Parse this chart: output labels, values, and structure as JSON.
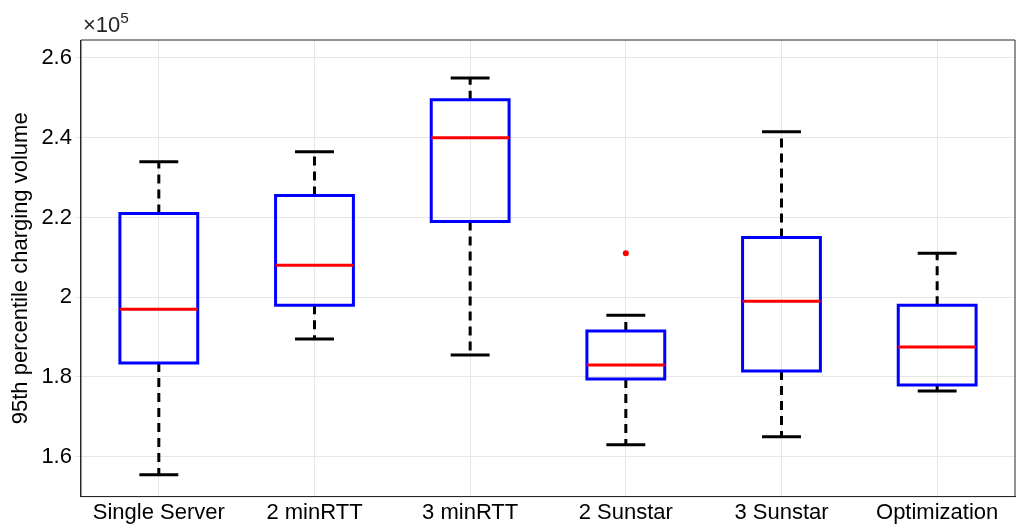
{
  "chart_data": {
    "type": "box",
    "categories": [
      "Single Server",
      "2 minRTT",
      "3 minRTT",
      "2 Sunstar",
      "3 Sunstar",
      "Optimization"
    ],
    "ylabel": "95th percentile charging volume",
    "annotations": [
      "×10$^{5}$"
    ],
    "ylim": [
      1.5,
      2.645
    ],
    "yticks": [
      1.6,
      1.8,
      2,
      2.2,
      2.4,
      2.6
    ],
    "grid": true,
    "series": [
      {
        "color": "#0000ff",
        "boxes": [
          {
            "low": 1.555,
            "q1": 1.835,
            "median": 1.97,
            "q3": 2.21,
            "high": 2.34
          },
          {
            "low": 1.895,
            "q1": 1.98,
            "median": 2.08,
            "q3": 2.255,
            "high": 2.365
          },
          {
            "low": 1.855,
            "q1": 2.19,
            "median": 2.4,
            "q3": 2.495,
            "high": 2.55
          },
          {
            "low": 1.63,
            "q1": 1.795,
            "median": 1.83,
            "q3": 1.915,
            "high": 1.955,
            "outliers": [
              2.11
            ]
          },
          {
            "low": 1.65,
            "q1": 1.815,
            "median": 1.99,
            "q3": 2.15,
            "high": 2.415
          },
          {
            "low": 1.765,
            "q1": 1.78,
            "median": 1.875,
            "q3": 1.98,
            "high": 2.11
          }
        ]
      }
    ]
  }
}
